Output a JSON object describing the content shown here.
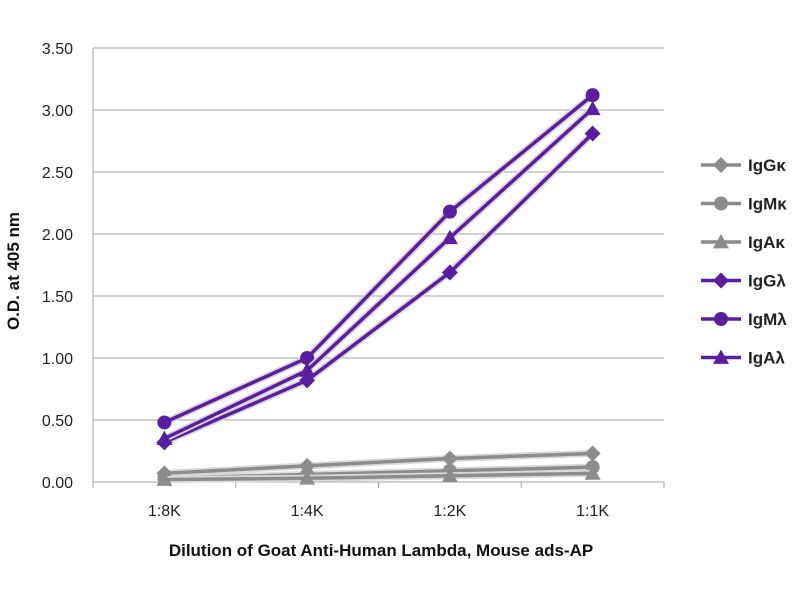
{
  "chart_data": {
    "type": "line",
    "title": "",
    "xlabel": "Dilution of Goat Anti-Human Lambda, Mouse ads-AP",
    "ylabel": "O.D. at 405 nm",
    "categories": [
      "1:8K",
      "1:4K",
      "1:2K",
      "1:1K"
    ],
    "ylim": [
      0,
      3.5
    ],
    "yticks": [
      "0.00",
      "0.50",
      "1.00",
      "1.50",
      "2.00",
      "2.50",
      "3.00",
      "3.50"
    ],
    "grid": true,
    "legend_position": "right",
    "series": [
      {
        "name": "IgGκ",
        "marker": "diamond",
        "color": "#8c8c8c",
        "values": [
          0.07,
          0.13,
          0.19,
          0.23
        ]
      },
      {
        "name": "IgMκ",
        "marker": "circle",
        "color": "#8c8c8c",
        "values": [
          0.03,
          0.06,
          0.09,
          0.12
        ]
      },
      {
        "name": "IgAκ",
        "marker": "triangle",
        "color": "#8c8c8c",
        "values": [
          0.02,
          0.03,
          0.05,
          0.07
        ]
      },
      {
        "name": "IgGλ",
        "marker": "diamond",
        "color": "#5a1ea0",
        "values": [
          0.32,
          0.82,
          1.69,
          2.81
        ]
      },
      {
        "name": "IgMλ",
        "marker": "circle",
        "color": "#5a1ea0",
        "values": [
          0.48,
          1.0,
          2.18,
          3.12
        ]
      },
      {
        "name": "IgAλ",
        "marker": "triangle",
        "color": "#5a1ea0",
        "values": [
          0.35,
          0.9,
          1.97,
          3.01
        ]
      }
    ]
  }
}
